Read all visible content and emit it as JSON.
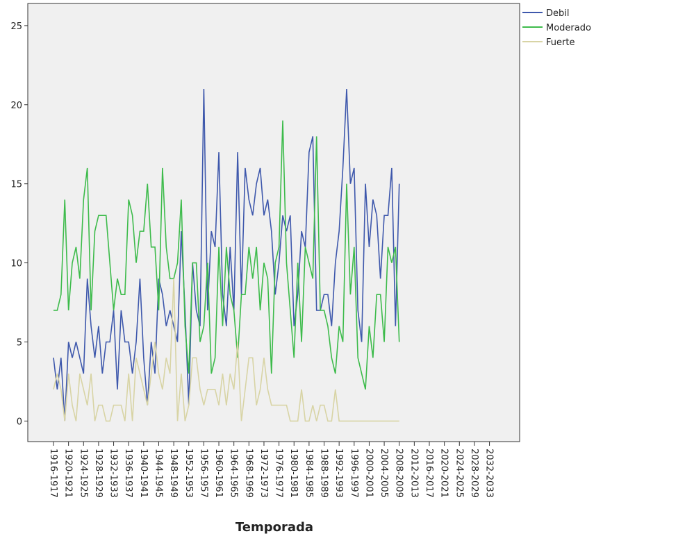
{
  "chart_data": {
    "type": "line",
    "x_label": "Temporada",
    "categories": [
      "1916-1917",
      null,
      null,
      null,
      "1920-1921",
      null,
      null,
      null,
      "1924-1925",
      null,
      null,
      null,
      "1928-1929",
      null,
      null,
      null,
      "1932-1933",
      null,
      null,
      null,
      "1936-1937",
      null,
      null,
      null,
      "1940-1941",
      null,
      null,
      null,
      "1944-1945",
      null,
      null,
      null,
      "1948-1949",
      null,
      null,
      null,
      "1952-1953",
      null,
      null,
      null,
      "1956-1957",
      null,
      null,
      null,
      "1960-1961",
      null,
      null,
      null,
      "1964-1965",
      null,
      null,
      null,
      "1968-1969",
      null,
      null,
      null,
      "1972-1973",
      null,
      null,
      null,
      "1976-1977",
      null,
      null,
      null,
      "1980-1981",
      null,
      null,
      null,
      "1984-1985",
      null,
      null,
      null,
      "1988-1989",
      null,
      null,
      null,
      "1992-1993",
      null,
      null,
      null,
      "1996-1997",
      null,
      null,
      null,
      "2000-2001",
      null,
      null,
      null,
      "2004-2005",
      null,
      null,
      null,
      "2008-2009",
      null,
      null,
      null,
      "2012-2013",
      null,
      null,
      null,
      "2016-2017",
      null,
      null,
      null,
      "2020-2021",
      null,
      null,
      null,
      "2024-2025",
      null,
      null,
      null,
      "2028-2029",
      null,
      null,
      null,
      "2032-2033"
    ],
    "series": [
      {
        "name": "Debil",
        "color": "#3e58ac",
        "values": [
          4,
          2,
          4,
          0,
          5,
          4,
          5,
          4,
          3,
          9,
          6,
          4,
          6,
          3,
          5,
          5,
          7,
          2,
          7,
          5,
          5,
          3,
          5,
          9,
          4,
          1,
          5,
          3,
          9,
          8,
          6,
          7,
          6,
          5,
          12,
          7,
          1,
          10,
          7,
          6,
          21,
          7,
          12,
          11,
          17,
          8,
          6,
          11,
          7,
          17,
          8,
          16,
          14,
          13,
          15,
          16,
          13,
          14,
          12,
          8,
          10,
          13,
          12,
          13,
          6,
          8,
          12,
          11,
          17,
          18,
          7,
          7,
          8,
          8,
          6,
          10,
          12,
          16,
          21,
          15,
          16,
          7,
          5,
          15,
          11,
          14,
          13,
          9,
          13,
          13,
          16,
          6,
          15,
          null,
          null,
          null,
          null,
          null,
          null,
          null,
          null,
          null,
          null,
          null,
          null,
          null,
          null,
          null,
          null,
          null,
          null,
          null,
          null,
          null,
          null,
          null,
          null
        ]
      },
      {
        "name": "Moderado",
        "color": "#3dbb4b",
        "values": [
          7,
          7,
          8,
          14,
          7,
          10,
          11,
          9,
          14,
          16,
          7,
          12,
          13,
          13,
          13,
          10,
          7,
          9,
          8,
          8,
          14,
          13,
          10,
          12,
          12,
          15,
          11,
          11,
          7,
          16,
          11,
          9,
          9,
          10,
          14,
          6,
          3,
          10,
          10,
          5,
          6,
          10,
          3,
          4,
          11,
          6,
          11,
          8,
          7,
          4,
          8,
          8,
          11,
          9,
          11,
          7,
          10,
          9,
          3,
          10,
          11,
          19,
          10,
          7,
          4,
          10,
          5,
          11,
          10,
          9,
          18,
          7,
          7,
          6,
          4,
          3,
          6,
          5,
          15,
          8,
          11,
          4,
          3,
          2,
          6,
          4,
          8,
          8,
          5,
          11,
          10,
          11,
          5,
          null,
          null,
          null,
          null,
          null,
          null,
          null,
          null,
          null,
          null,
          null,
          null,
          null,
          null,
          null,
          null,
          null,
          null,
          null,
          null,
          null,
          null,
          null,
          null
        ]
      },
      {
        "name": "Fuerte",
        "color": "#d8d4a5",
        "values": [
          2,
          3,
          2,
          0,
          3,
          1,
          0,
          3,
          2,
          1,
          3,
          0,
          1,
          1,
          0,
          0,
          1,
          1,
          1,
          0,
          3,
          0,
          4,
          3,
          2,
          1,
          3,
          5,
          3,
          2,
          4,
          3,
          9,
          0,
          3,
          0,
          1,
          4,
          4,
          2,
          1,
          2,
          2,
          2,
          1,
          3,
          1,
          3,
          2,
          5,
          0,
          2,
          4,
          4,
          1,
          2,
          4,
          2,
          1,
          1,
          1,
          1,
          1,
          0,
          0,
          0,
          2,
          0,
          0,
          1,
          0,
          1,
          1,
          0,
          0,
          2,
          0,
          0,
          0,
          0,
          0,
          0,
          0,
          0,
          0,
          0,
          0,
          0,
          0,
          0,
          0,
          0,
          0,
          null,
          null,
          null,
          null,
          null,
          null,
          null,
          null,
          null,
          null,
          null,
          null,
          null,
          null,
          null,
          null,
          null,
          null,
          null,
          null,
          null,
          null,
          null,
          null
        ]
      }
    ],
    "ylim": [
      -1.3,
      26.4
    ],
    "yticks": [
      0,
      5,
      10,
      15,
      20,
      25
    ],
    "legend": "right"
  }
}
